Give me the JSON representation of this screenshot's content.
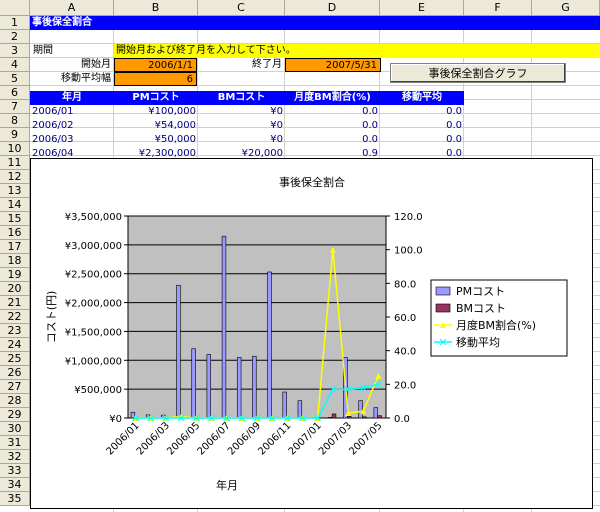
{
  "columns": [
    "A",
    "B",
    "C",
    "D",
    "E",
    "F",
    "G"
  ],
  "rows": [
    "1",
    "2",
    "3",
    "4",
    "5",
    "6",
    "7",
    "8",
    "9",
    "10",
    "11",
    "12",
    "13",
    "14",
    "15",
    "16",
    "17",
    "18",
    "19",
    "20",
    "21",
    "22",
    "23",
    "24",
    "25",
    "26",
    "27",
    "28",
    "29",
    "30",
    "31",
    "32",
    "33",
    "34",
    "35"
  ],
  "sheet": {
    "title": "事後保全割合",
    "period_label": "期間",
    "period_instruction": "開始月および終了月を入力して下さい。",
    "start_label": "開始月",
    "start_value": "2006/1/1",
    "end_label": "終了月",
    "end_value": "2007/5/31",
    "ma_label": "移動平均幅",
    "ma_value": "6",
    "button_label": "事後保全割合グラフ",
    "headers": [
      "年月",
      "PMコスト",
      "BMコスト",
      "月度BM割合(%)",
      "移動平均"
    ],
    "data_rows": [
      [
        "2006/01",
        "¥100,000",
        "¥0",
        "0.0",
        "0.0"
      ],
      [
        "2006/02",
        "¥54,000",
        "¥0",
        "0.0",
        "0.0"
      ],
      [
        "2006/03",
        "¥50,000",
        "¥0",
        "0.0",
        "0.0"
      ],
      [
        "2006/04",
        "¥2,300,000",
        "¥20,000",
        "0.9",
        "0.0"
      ]
    ]
  },
  "colors": {
    "pm_bar": "#9999ff",
    "bm_bar": "#993366",
    "ratio_line": "#ffff00",
    "ma_line": "#00ffff",
    "plot_bg": "#c0c0c0",
    "header_blue": "#0000ff",
    "input_orange": "#ff9900"
  },
  "chart_data": {
    "type": "bar",
    "title": "事後保全割合",
    "xlabel": "年月",
    "ylabel": "コスト(円)",
    "ylim": [
      0,
      3500000
    ],
    "y2lim": [
      0,
      120
    ],
    "y_ticks": [
      "¥0",
      "¥500,000",
      "¥1,000,000",
      "¥1,500,000",
      "¥2,000,000",
      "¥2,500,000",
      "¥3,000,000",
      "¥3,500,000"
    ],
    "y2_ticks": [
      "0.0",
      "20.0",
      "40.0",
      "60.0",
      "80.0",
      "100.0",
      "120.0"
    ],
    "categories": [
      "2006/01",
      "2006/02",
      "2006/03",
      "2006/04",
      "2006/05",
      "2006/06",
      "2006/07",
      "2006/08",
      "2006/09",
      "2006/10",
      "2006/11",
      "2006/12",
      "2007/01",
      "2007/02",
      "2007/03",
      "2007/04",
      "2007/05"
    ],
    "x_tick_labels": [
      "2006/01",
      "2006/03",
      "2006/05",
      "2006/07",
      "2006/09",
      "2006/11",
      "2007/01",
      "2007/03",
      "2007/05"
    ],
    "series": [
      {
        "name": "PMコスト",
        "kind": "bar",
        "axis": "left",
        "values": [
          100000,
          54000,
          50000,
          2300000,
          1200000,
          1100000,
          3150000,
          1050000,
          1070000,
          2530000,
          450000,
          300000,
          10000,
          10000,
          1050000,
          300000,
          180000
        ]
      },
      {
        "name": "BMコスト",
        "kind": "bar",
        "axis": "left",
        "values": [
          0,
          0,
          0,
          20000,
          0,
          0,
          0,
          0,
          0,
          0,
          0,
          0,
          0,
          70000,
          30000,
          20000,
          40000
        ]
      },
      {
        "name": "月度BM割合(%)",
        "kind": "line",
        "axis": "right",
        "values": [
          0,
          0,
          0,
          0.9,
          0,
          0,
          0,
          0,
          0,
          0,
          0,
          0,
          0,
          100,
          3,
          4,
          25
        ]
      },
      {
        "name": "移動平均",
        "kind": "line",
        "axis": "right",
        "values": [
          0,
          0,
          0,
          0,
          0,
          0,
          0,
          0,
          0,
          0,
          0,
          0,
          0,
          17,
          17,
          18,
          20
        ]
      }
    ],
    "legend_position": "right"
  }
}
